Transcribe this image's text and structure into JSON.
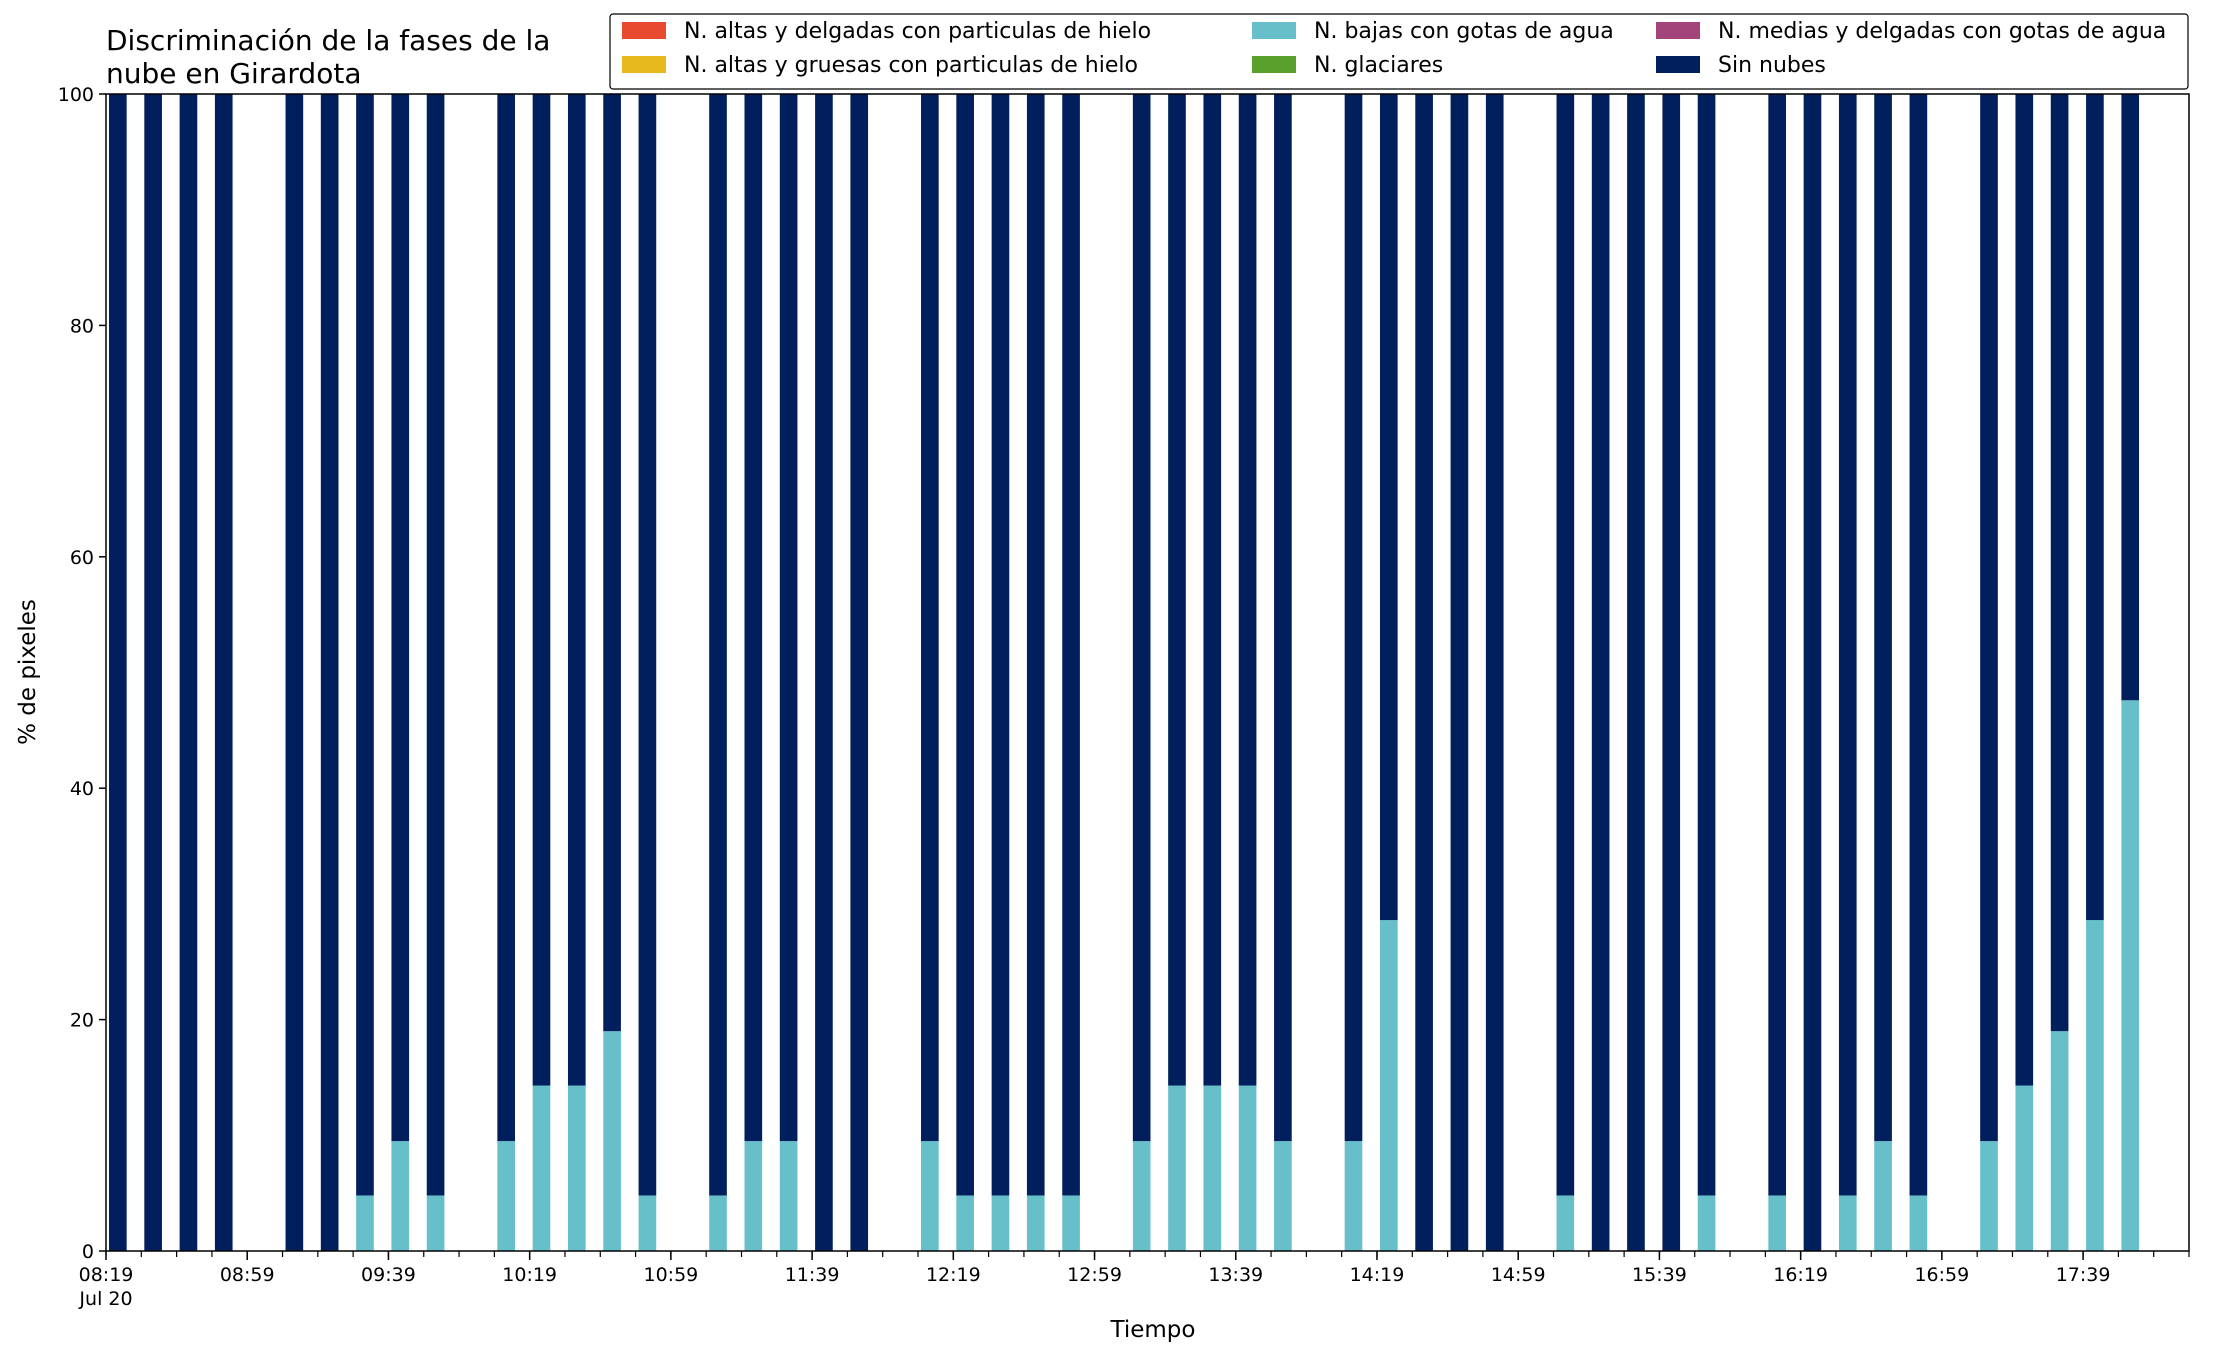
{
  "chart_data": {
    "type": "bar",
    "stacked": true,
    "title_lines": [
      "Discriminación de la fases de la",
      "nube en Girardota"
    ],
    "xlabel": "Tiempo",
    "ylabel": "% de pixeles",
    "ylim": [
      0,
      100
    ],
    "yticks": [
      0,
      20,
      40,
      60,
      80,
      100
    ],
    "x_start": "2020-07-20 08:19",
    "x_end": "2020-07-20 18:09",
    "bar_interval_minutes": 10,
    "x_tick_labels": [
      {
        "time": "08:19",
        "sub": "Jul 20"
      },
      {
        "time": "08:59"
      },
      {
        "time": "09:39"
      },
      {
        "time": "10:19"
      },
      {
        "time": "10:59"
      },
      {
        "time": "11:39"
      },
      {
        "time": "12:19"
      },
      {
        "time": "12:59"
      },
      {
        "time": "13:39"
      },
      {
        "time": "14:19"
      },
      {
        "time": "14:59"
      },
      {
        "time": "15:39"
      },
      {
        "time": "16:19"
      },
      {
        "time": "16:59"
      },
      {
        "time": "17:39"
      }
    ],
    "x_minor_tick_every_minutes": 10,
    "categories": [
      "08:19",
      "08:29",
      "08:39",
      "08:49",
      "08:59",
      "09:09",
      "09:19",
      "09:29",
      "09:39",
      "09:49",
      "09:59",
      "10:09",
      "10:19",
      "10:29",
      "10:39",
      "10:49",
      "10:59",
      "11:09",
      "11:19",
      "11:29",
      "11:39",
      "11:49",
      "11:59",
      "12:09",
      "12:19",
      "12:29",
      "12:39",
      "12:49",
      "12:59",
      "13:09",
      "13:19",
      "13:29",
      "13:39",
      "13:49",
      "13:59",
      "14:09",
      "14:19",
      "14:29",
      "14:39",
      "14:49",
      "14:59",
      "15:09",
      "15:19",
      "15:29",
      "15:39",
      "15:49",
      "15:59",
      "16:09",
      "16:19",
      "16:29",
      "16:39",
      "16:49",
      "16:59",
      "17:09",
      "17:19",
      "17:29",
      "17:39",
      "17:49"
    ],
    "series": [
      {
        "name": "N. altas y delgadas con particulas de hielo",
        "color": "#e84a2f",
        "values": [
          0,
          0,
          0,
          0,
          null,
          0,
          0,
          0,
          0,
          0,
          null,
          0,
          0,
          0,
          0,
          0,
          null,
          0,
          0,
          0,
          0,
          0,
          null,
          0,
          0,
          0,
          0,
          0,
          null,
          0,
          0,
          0,
          0,
          0,
          null,
          0,
          0,
          0,
          0,
          0,
          null,
          0,
          0,
          0,
          0,
          0,
          null,
          0,
          0,
          0,
          0,
          0,
          null,
          0,
          0,
          0,
          0,
          0
        ]
      },
      {
        "name": "N. altas y gruesas con particulas de hielo",
        "color": "#e6b81e",
        "values": [
          0,
          0,
          0,
          0,
          null,
          0,
          0,
          0,
          0,
          0,
          null,
          0,
          0,
          0,
          0,
          0,
          null,
          0,
          0,
          0,
          0,
          0,
          null,
          0,
          0,
          0,
          0,
          0,
          null,
          0,
          0,
          0,
          0,
          0,
          null,
          0,
          0,
          0,
          0,
          0,
          null,
          0,
          0,
          0,
          0,
          0,
          null,
          0,
          0,
          0,
          0,
          0,
          null,
          0,
          0,
          0,
          0,
          0
        ]
      },
      {
        "name": "N. bajas con gotas de agua",
        "color": "#67bfca",
        "values": [
          0,
          0,
          0,
          0,
          null,
          0,
          0,
          4.8,
          9.5,
          4.8,
          null,
          9.5,
          14.3,
          14.3,
          19,
          4.8,
          null,
          4.8,
          9.5,
          9.5,
          0,
          0,
          null,
          9.5,
          4.8,
          4.8,
          4.8,
          4.8,
          null,
          9.5,
          14.3,
          14.3,
          14.3,
          9.5,
          null,
          9.5,
          28.6,
          0,
          0,
          0,
          null,
          4.8,
          0,
          0,
          0,
          4.8,
          null,
          4.8,
          0,
          4.8,
          9.5,
          4.8,
          null,
          9.5,
          14.3,
          19,
          28.6,
          47.6
        ]
      },
      {
        "name": "N. glaciares",
        "color": "#5aa02c",
        "values": [
          0,
          0,
          0,
          0,
          null,
          0,
          0,
          0,
          0,
          0,
          null,
          0,
          0,
          0,
          0,
          0,
          null,
          0,
          0,
          0,
          0,
          0,
          null,
          0,
          0,
          0,
          0,
          0,
          null,
          0,
          0,
          0,
          0,
          0,
          null,
          0,
          0,
          0,
          0,
          0,
          null,
          0,
          0,
          0,
          0,
          0,
          null,
          0,
          0,
          0,
          0,
          0,
          null,
          0,
          0,
          0,
          0,
          0
        ]
      },
      {
        "name": "N. medias y delgadas con gotas de agua",
        "color": "#a3457a",
        "values": [
          0,
          0,
          0,
          0,
          null,
          0,
          0,
          0,
          0,
          0,
          null,
          0,
          0,
          0,
          0,
          0,
          null,
          0,
          0,
          0,
          0,
          0,
          null,
          0,
          0,
          0,
          0,
          0,
          null,
          0,
          0,
          0,
          0,
          0,
          null,
          0,
          0,
          0,
          0,
          0,
          null,
          0,
          0,
          0,
          0,
          0,
          null,
          0,
          0,
          0,
          0,
          0,
          null,
          0,
          0,
          0,
          0,
          0
        ]
      },
      {
        "name": "Sin nubes",
        "color": "#011f5c",
        "values": [
          100,
          100,
          100,
          100,
          null,
          100,
          100,
          95.2,
          90.5,
          95.2,
          null,
          90.5,
          85.7,
          85.7,
          81,
          95.2,
          null,
          95.2,
          90.5,
          90.5,
          100,
          100,
          null,
          90.5,
          95.2,
          95.2,
          95.2,
          95.2,
          null,
          90.5,
          85.7,
          85.7,
          85.7,
          90.5,
          null,
          90.5,
          71.4,
          100,
          100,
          100,
          null,
          95.2,
          100,
          100,
          100,
          95.2,
          null,
          95.2,
          100,
          95.2,
          90.5,
          95.2,
          null,
          90.5,
          85.7,
          81,
          71.4,
          52.4
        ]
      }
    ],
    "legend": {
      "placement": "top-right",
      "columns": 3
    },
    "grid": false
  }
}
